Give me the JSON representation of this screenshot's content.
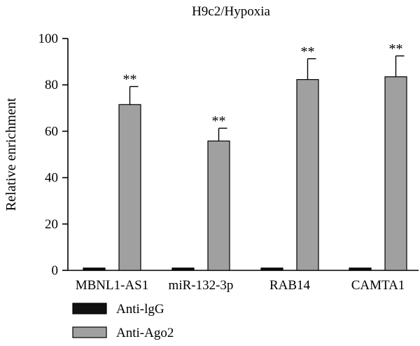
{
  "chart_data": {
    "type": "bar",
    "title": "H9c2/Hypoxia",
    "xlabel": "",
    "ylabel": "Relative enrichment",
    "ylim": [
      0,
      100
    ],
    "yticks": [
      0,
      20,
      40,
      60,
      80,
      100
    ],
    "categories": [
      "MBNL1-AS1",
      "miR-132-3p",
      "RAB14",
      "CAMTA1"
    ],
    "series": [
      {
        "name": "Anti-lgG",
        "color": "#111111",
        "values": [
          1,
          1,
          1,
          1
        ],
        "errors": [
          0,
          0,
          0,
          0
        ],
        "annotations": [
          "",
          "",
          "",
          ""
        ]
      },
      {
        "name": "Anti-Ago2",
        "color": "#a0a0a0",
        "values": [
          71.5,
          55.8,
          82.3,
          83.5
        ],
        "errors": [
          7.8,
          5.5,
          9.0,
          9.0
        ],
        "annotations": [
          "**",
          "**",
          "**",
          "**"
        ]
      }
    ],
    "legend_position": "bottom-left",
    "grid": false
  }
}
